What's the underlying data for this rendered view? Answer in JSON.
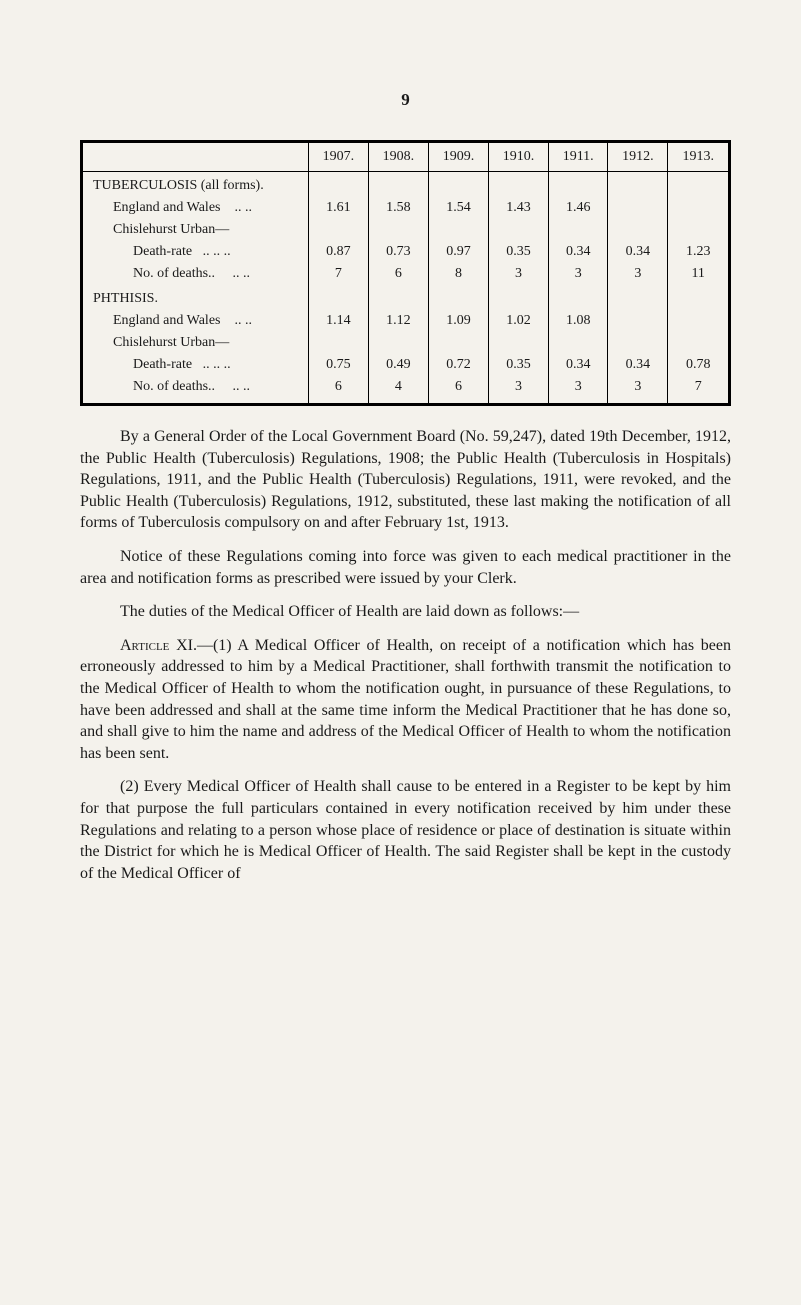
{
  "page_number": "9",
  "table": {
    "columns": [
      "",
      "1907.",
      "1908.",
      "1909.",
      "1910.",
      "1911.",
      "1912.",
      "1913."
    ],
    "sections": [
      {
        "heading": "TUBERCULOSIS (all forms).",
        "rows": [
          {
            "label": "England and Wales",
            "tail": "..  ..",
            "cells": [
              "1.61",
              "1.58",
              "1.54",
              "1.43",
              "1.46",
              "",
              ""
            ]
          },
          {
            "label": "Chislehurst Urban—",
            "cells": [
              "",
              "",
              "",
              "",
              "",
              "",
              ""
            ]
          },
          {
            "label_indent": "Death-rate",
            "tail": "..  ..  ..",
            "cells": [
              "0.87",
              "0.73",
              "0.97",
              "0.35",
              "0.34",
              "0.34",
              "1.23"
            ]
          },
          {
            "label_indent": "No. of deaths..",
            "tail": "..  ..",
            "cells": [
              "7",
              "6",
              "8",
              "3",
              "3",
              "3",
              "11"
            ]
          }
        ]
      },
      {
        "heading": "PHTHISIS.",
        "rows": [
          {
            "label": "England and Wales",
            "tail": "..  ..",
            "cells": [
              "1.14",
              "1.12",
              "1.09",
              "1.02",
              "1.08",
              "",
              ""
            ]
          },
          {
            "label": "Chislehurst Urban—",
            "cells": [
              "",
              "",
              "",
              "",
              "",
              "",
              ""
            ]
          },
          {
            "label_indent": "Death-rate",
            "tail": "..  ..  ..",
            "cells": [
              "0.75",
              "0.49",
              "0.72",
              "0.35",
              "0.34",
              "0.34",
              "0.78"
            ]
          },
          {
            "label_indent": "No. of deaths..",
            "tail": "..  ..",
            "cells": [
              "6",
              "4",
              "6",
              "3",
              "3",
              "3",
              "7"
            ]
          }
        ]
      }
    ],
    "border_color": "#000000",
    "background_color": "#f4f2ec",
    "font_size": 14
  },
  "paragraphs": {
    "p1": "By a General Order of the Local Government Board (No. 59,247), dated 19th December, 1912, the Public Health (Tuberculosis) Regulations, 1908; the Public Health (Tuberculosis in Hospitals) Regulations, 1911, and the Public Health (Tuberculosis) Regulations, 1911, were revoked, and the Public Health (Tuberculosis) Regulations, 1912, substituted, these last making the notification of all forms of Tuberculosis compulsory on and after February 1st, 1913.",
    "p2": "Notice of these Regulations coming into force was given to each medical practitioner in the area and notification forms as prescribed were issued by your Clerk.",
    "p3": "The duties of the Medical Officer of Health are laid down as follows:—",
    "art1_lead": "Article XI.—(1)",
    "art1": " A Medical Officer of Health, on receipt of a notification which has been erroneously addressed to him by a Medical Practitioner, shall forthwith transmit the notification to the Medical Officer of Health to whom the notification ought, in pursuance of these Regulations, to have been addressed and shall at the same time inform the Medical Practitioner that he has done so, and shall give to him the name and address of the Medical Officer of Health to whom the notification has been sent.",
    "art2_lead": "(2)",
    "art2": " Every Medical Officer of Health shall cause to be entered in a Register to be kept by him for that purpose the full particulars contained in every notification received by him under these Regulations and relating to a person whose place of residence or place of destination is situate within the District for which he is Medical Officer of Health. The said Register shall be kept in the custody of the Medical Officer of"
  }
}
